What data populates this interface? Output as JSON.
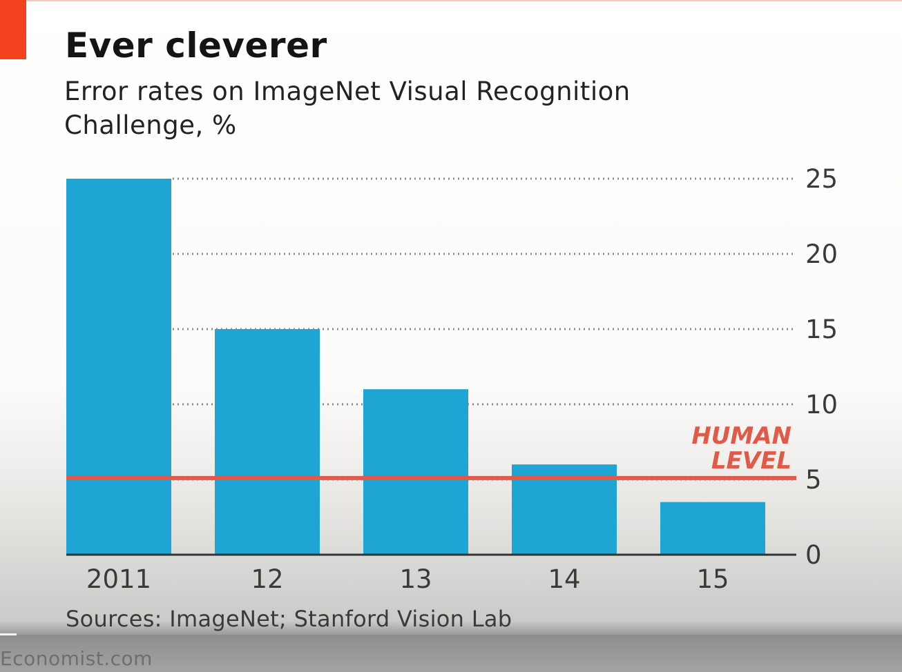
{
  "title": "Ever cleverer",
  "subtitle": "Error rates on ImageNet Visual Recognition Challenge, %",
  "source": "Sources: ImageNet; Stanford Vision Lab",
  "footer": "Economist.com",
  "colors": {
    "accent": "#f2421e",
    "bar": "#1ea5d3",
    "human_line": "#e05a4a",
    "grid": "#8a8a8a",
    "text": "#141414"
  },
  "chart_data": {
    "type": "bar",
    "title": "Ever cleverer",
    "subtitle": "Error rates on ImageNet Visual Recognition Challenge, %",
    "categories": [
      "2011",
      "12",
      "13",
      "14",
      "15"
    ],
    "values": [
      25,
      15,
      11,
      6,
      3.5
    ],
    "ylim": [
      0,
      25
    ],
    "yticks": [
      0,
      5,
      10,
      15,
      20,
      25
    ],
    "y_axis_side": "right",
    "grid": "dotted horizontal",
    "legend": "none",
    "annotations": [
      {
        "label_lines": [
          "HUMAN",
          "LEVEL"
        ],
        "type": "hline",
        "y": 5.1
      }
    ]
  }
}
